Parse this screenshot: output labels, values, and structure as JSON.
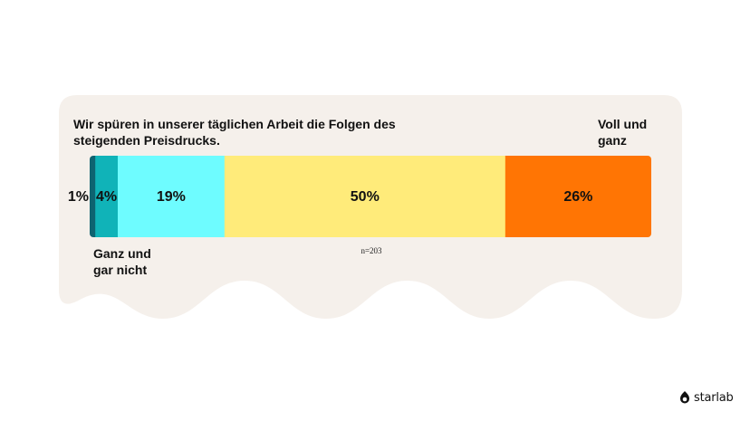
{
  "question": "Wir spüren in unserer täglichen Arbeit die Folgen des steigenden Preisdrucks.",
  "label_top": "Voll und ganz",
  "label_bottom": "Ganz und gar nicht",
  "sample_size": "n=203",
  "brand": {
    "name": "starlab",
    "icon": "starlab-logo-icon"
  },
  "colors": {
    "card": "#f5f0eb"
  },
  "chart_data": {
    "type": "bar",
    "orientation": "horizontal-stacked",
    "series": [
      {
        "value": 1,
        "label": "1%",
        "color": "#0e6370"
      },
      {
        "value": 4,
        "label": "4%",
        "color": "#10b3b8"
      },
      {
        "value": 19,
        "label": "19%",
        "color": "#6efcff"
      },
      {
        "value": 50,
        "label": "50%",
        "color": "#ffeb7a"
      },
      {
        "value": 26,
        "label": "26%",
        "color": "#ff7504"
      }
    ]
  }
}
